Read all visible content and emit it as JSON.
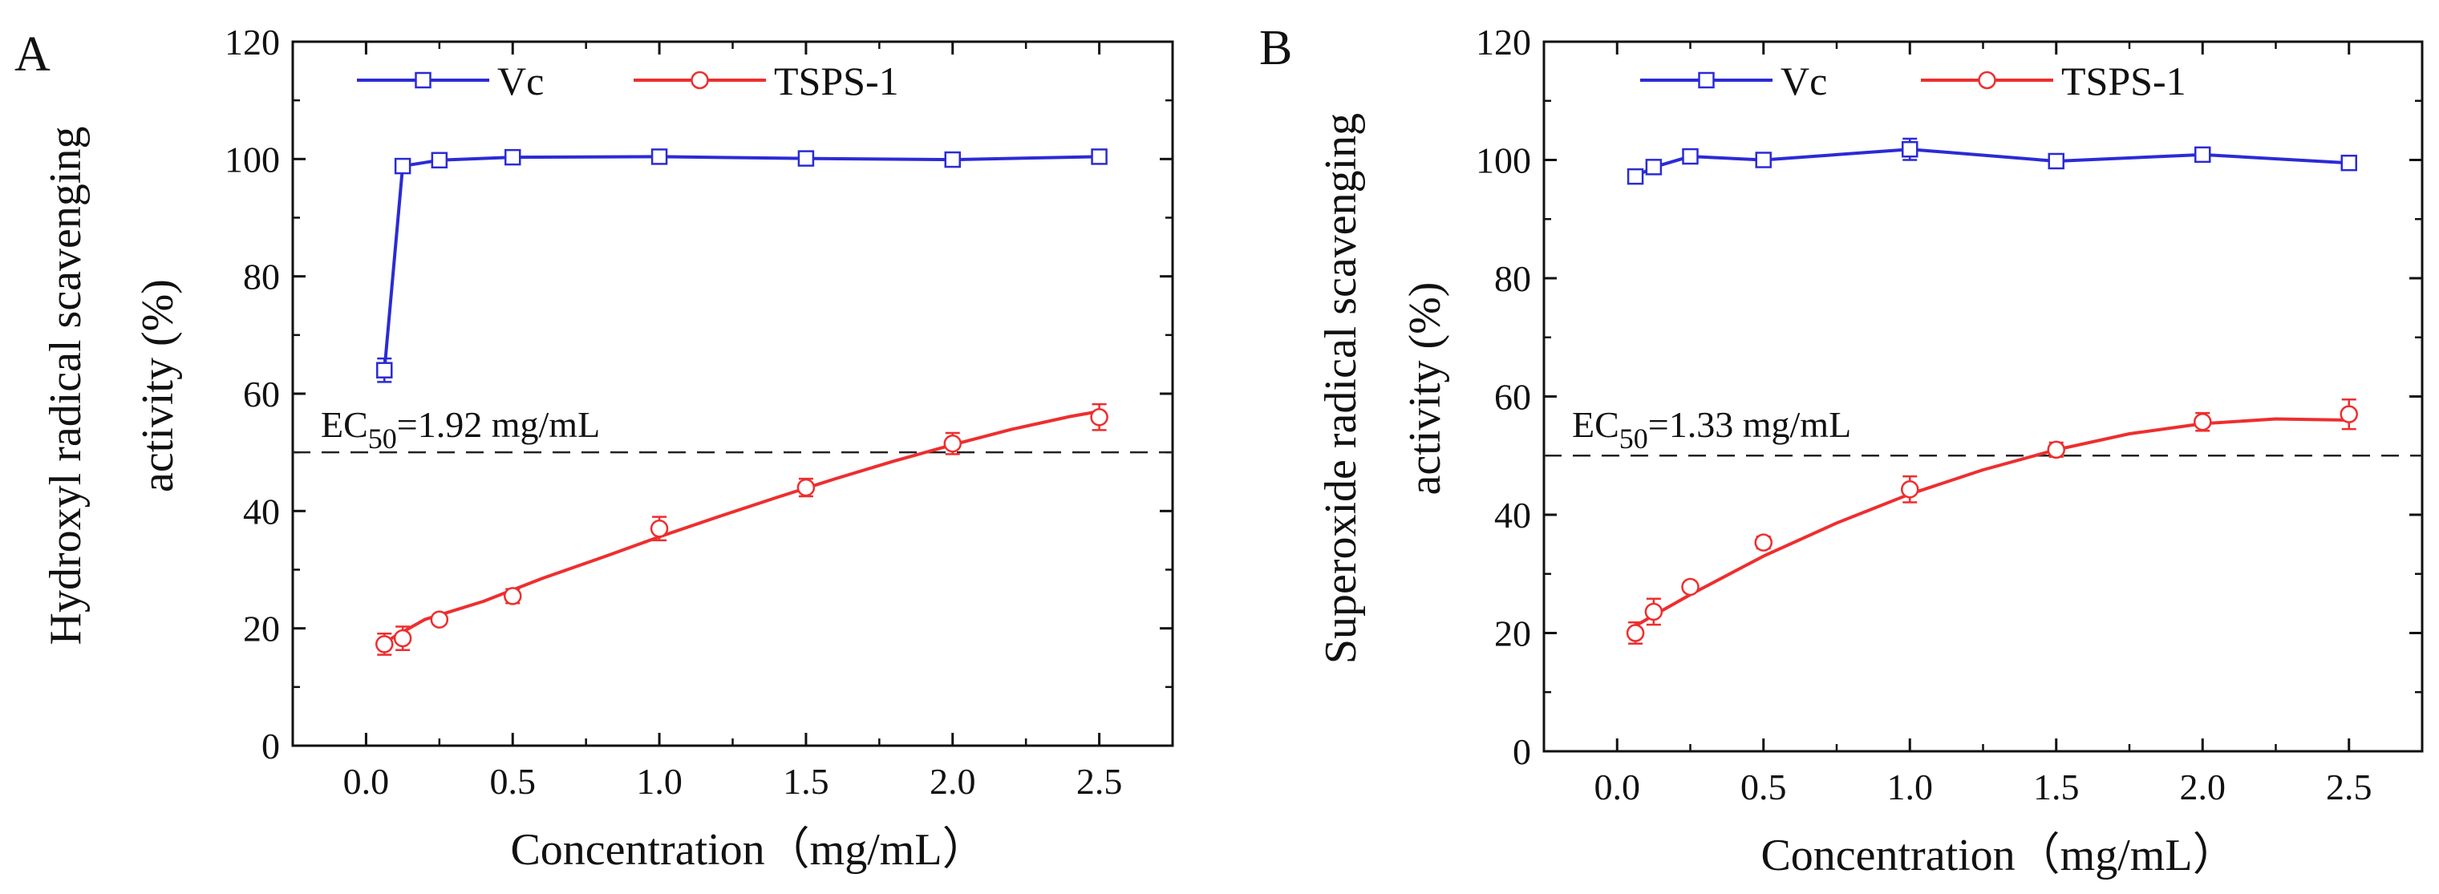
{
  "figure": {
    "panel_count": 2
  },
  "chart_data": [
    {
      "type": "line",
      "panel_label": "A",
      "xlabel": "Concentration（mg/mL）",
      "ylabel_line1": "Hydroxyl radical scavenging",
      "ylabel_line2": "activity (%)",
      "xlim": [
        -0.25,
        2.75
      ],
      "ylim": [
        0,
        120
      ],
      "xticks": [
        0.0,
        0.5,
        1.0,
        1.5,
        2.0,
        2.5
      ],
      "xtick_labels": [
        "0.0",
        "0.5",
        "1.0",
        "1.5",
        "2.0",
        "2.5"
      ],
      "yticks": [
        0,
        20,
        40,
        60,
        80,
        100,
        120
      ],
      "ytick_labels": [
        "0",
        "20",
        "40",
        "60",
        "80",
        "100",
        "120"
      ],
      "reference_line": {
        "y": 50,
        "style": "dashed"
      },
      "annotation": {
        "prefix": "EC",
        "subscript": "50",
        "suffix": "=1.92 mg/mL"
      },
      "legend": {
        "position": "top"
      },
      "series": [
        {
          "name": "Vc",
          "color": "#2b2bd6",
          "marker": "square",
          "connect": "lines",
          "x": [
            0.0625,
            0.125,
            0.25,
            0.5,
            1.0,
            1.5,
            2.0,
            2.5
          ],
          "y": [
            64.0,
            98.8,
            99.8,
            100.3,
            100.4,
            100.1,
            99.9,
            100.4
          ],
          "err": [
            2.0,
            1.0,
            0.8,
            0.8,
            0.9,
            0.9,
            0.9,
            1.0
          ]
        },
        {
          "name": "TSPS-1",
          "color": "#ee2e2e",
          "marker": "circle",
          "connect": "fit",
          "x": [
            0.0625,
            0.125,
            0.25,
            0.5,
            1.0,
            1.5,
            2.0,
            2.5
          ],
          "y": [
            17.3,
            18.3,
            21.5,
            25.5,
            37.0,
            44.0,
            51.5,
            56.0
          ],
          "err": [
            1.8,
            2.0,
            0.8,
            1.2,
            2.0,
            1.5,
            1.8,
            2.2
          ],
          "fit_x": [
            0.0625,
            0.1,
            0.2,
            0.4,
            0.6,
            0.8,
            1.0,
            1.2,
            1.4,
            1.6,
            1.8,
            2.0,
            2.2,
            2.4,
            2.5
          ],
          "fit_y": [
            17.5,
            18.7,
            21.5,
            24.6,
            28.5,
            32.0,
            35.6,
            39.0,
            42.3,
            45.5,
            48.5,
            51.3,
            53.9,
            56.1,
            57.0
          ]
        }
      ]
    },
    {
      "type": "line",
      "panel_label": "B",
      "xlabel": "Concentration（mg/mL）",
      "ylabel_line1": "Superoxide radical scavenging",
      "ylabel_line2": "activity (%)",
      "xlim": [
        -0.25,
        2.75
      ],
      "ylim": [
        0,
        120
      ],
      "xticks": [
        0.0,
        0.5,
        1.0,
        1.5,
        2.0,
        2.5
      ],
      "xtick_labels": [
        "0.0",
        "0.5",
        "1.0",
        "1.5",
        "2.0",
        "2.5"
      ],
      "yticks": [
        0,
        20,
        40,
        60,
        80,
        100,
        120
      ],
      "ytick_labels": [
        "0",
        "20",
        "40",
        "60",
        "80",
        "100",
        "120"
      ],
      "reference_line": {
        "y": 50,
        "style": "dashed"
      },
      "annotation": {
        "prefix": "EC",
        "subscript": "50",
        "suffix": "=1.33 mg/mL"
      },
      "legend": {
        "position": "top"
      },
      "series": [
        {
          "name": "Vc",
          "color": "#2b2bd6",
          "marker": "square",
          "connect": "lines",
          "x": [
            0.0625,
            0.125,
            0.25,
            0.5,
            1.0,
            1.5,
            2.0,
            2.5
          ],
          "y": [
            97.2,
            98.8,
            100.6,
            100.0,
            101.8,
            99.8,
            100.9,
            99.5
          ],
          "err": [
            0.8,
            1.0,
            0.9,
            0.9,
            1.8,
            0.9,
            1.0,
            0.8
          ]
        },
        {
          "name": "TSPS-1",
          "color": "#ee2e2e",
          "marker": "circle",
          "connect": "fit",
          "x": [
            0.0625,
            0.125,
            0.25,
            0.5,
            1.0,
            1.5,
            2.0,
            2.5
          ],
          "y": [
            20.0,
            23.6,
            27.8,
            35.3,
            44.3,
            51.0,
            55.7,
            57.0
          ],
          "err": [
            1.8,
            2.2,
            0.8,
            1.0,
            2.2,
            1.2,
            1.5,
            2.5
          ],
          "fit_x": [
            0.0625,
            0.125,
            0.25,
            0.5,
            0.75,
            1.0,
            1.25,
            1.5,
            1.75,
            2.0,
            2.25,
            2.5
          ],
          "fit_y": [
            21.2,
            23.0,
            26.5,
            33.0,
            38.6,
            43.5,
            47.6,
            51.0,
            53.7,
            55.4,
            56.2,
            56.0
          ]
        }
      ]
    }
  ]
}
